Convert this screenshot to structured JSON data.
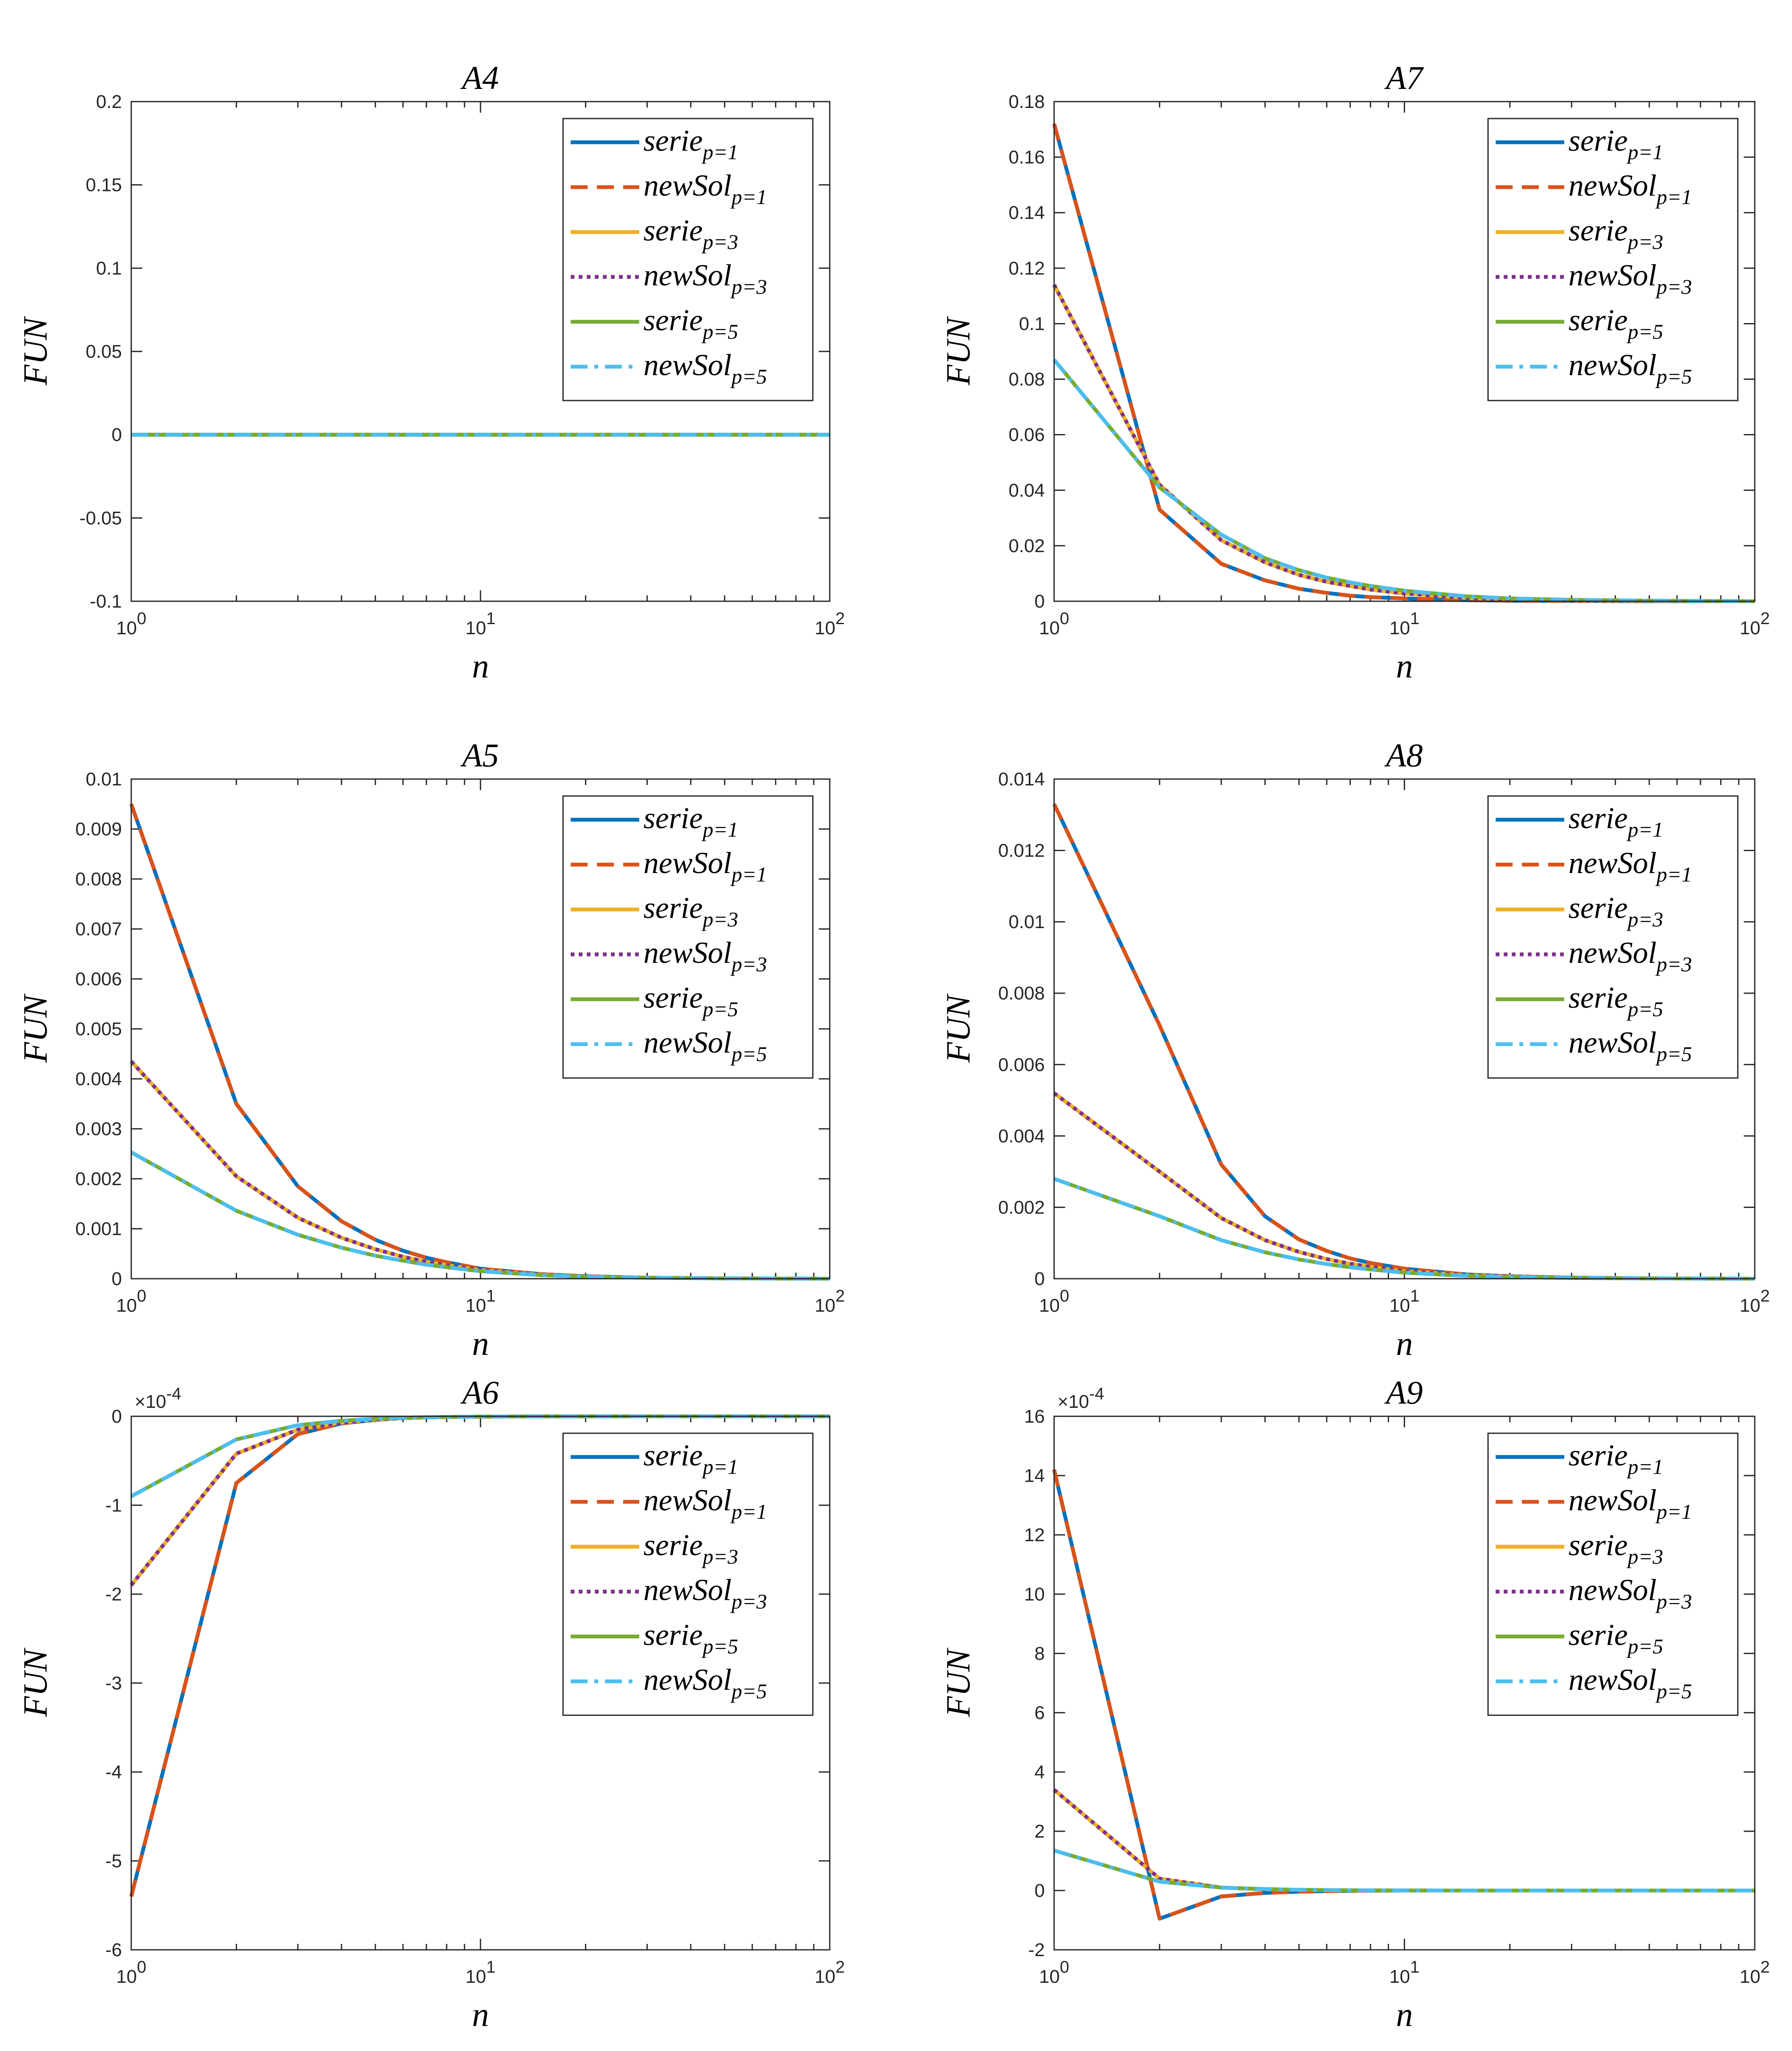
{
  "chart_data": [
    {
      "type": "line",
      "title": "A4",
      "xlabel": "n",
      "ylabel": "FUN",
      "xscale": "log",
      "xlim": [
        1,
        100
      ],
      "ylim": [
        -0.1,
        0.2
      ],
      "yticks": [
        "-0.1",
        "-0.05",
        "0",
        "0.05",
        "0.1",
        "0.15",
        "0.2"
      ],
      "xticks": [
        {
          "base": "10",
          "exp": "0"
        },
        {
          "base": "10",
          "exp": "1"
        },
        {
          "base": "10",
          "exp": "2"
        }
      ],
      "exponent": "",
      "legend_position": "top-right",
      "x": [
        1,
        2,
        3,
        4,
        5,
        6,
        7,
        8,
        10,
        15,
        20,
        30,
        50,
        100
      ],
      "series": [
        {
          "name": "serie",
          "sub": "p=1",
          "values": [
            0,
            0,
            0,
            0,
            0,
            0,
            0,
            0,
            0,
            0,
            0,
            0,
            0,
            0
          ]
        },
        {
          "name": "newSol",
          "sub": "p=1",
          "values": [
            0,
            0,
            0,
            0,
            0,
            0,
            0,
            0,
            0,
            0,
            0,
            0,
            0,
            0
          ]
        },
        {
          "name": "serie",
          "sub": "p=3",
          "values": [
            0,
            0,
            0,
            0,
            0,
            0,
            0,
            0,
            0,
            0,
            0,
            0,
            0,
            0
          ]
        },
        {
          "name": "newSol",
          "sub": "p=3",
          "values": [
            0,
            0,
            0,
            0,
            0,
            0,
            0,
            0,
            0,
            0,
            0,
            0,
            0,
            0
          ]
        },
        {
          "name": "serie",
          "sub": "p=5",
          "values": [
            0,
            0,
            0,
            0,
            0,
            0,
            0,
            0,
            0,
            0,
            0,
            0,
            0,
            0
          ]
        },
        {
          "name": "newSol",
          "sub": "p=5",
          "values": [
            0,
            0,
            0,
            0,
            0,
            0,
            0,
            0,
            0,
            0,
            0,
            0,
            0,
            0
          ]
        }
      ]
    },
    {
      "type": "line",
      "title": "A7",
      "xlabel": "n",
      "ylabel": "FUN",
      "xscale": "log",
      "xlim": [
        1,
        100
      ],
      "ylim": [
        0,
        0.18
      ],
      "yticks": [
        "0",
        "0.02",
        "0.04",
        "0.06",
        "0.08",
        "0.1",
        "0.12",
        "0.14",
        "0.16",
        "0.18"
      ],
      "xticks": [
        {
          "base": "10",
          "exp": "0"
        },
        {
          "base": "10",
          "exp": "1"
        },
        {
          "base": "10",
          "exp": "2"
        }
      ],
      "exponent": "",
      "legend_position": "top-right",
      "x": [
        1,
        2,
        3,
        4,
        5,
        6,
        7,
        8,
        10,
        15,
        20,
        30,
        50,
        100
      ],
      "series": [
        {
          "name": "serie",
          "sub": "p=1",
          "values": [
            0.172,
            0.033,
            0.0135,
            0.0075,
            0.0045,
            0.003,
            0.002,
            0.0015,
            0.001,
            0.0004,
            0.0002,
            0.0001,
            0,
            0
          ]
        },
        {
          "name": "newSol",
          "sub": "p=1",
          "values": [
            0.172,
            0.033,
            0.0135,
            0.0075,
            0.0045,
            0.003,
            0.002,
            0.0015,
            0.001,
            0.0004,
            0.0002,
            0.0001,
            0,
            0
          ]
        },
        {
          "name": "serie",
          "sub": "p=3",
          "values": [
            0.114,
            0.042,
            0.022,
            0.014,
            0.0095,
            0.007,
            0.0055,
            0.0042,
            0.0028,
            0.0012,
            0.0007,
            0.0003,
            0.0001,
            0
          ]
        },
        {
          "name": "newSol",
          "sub": "p=3",
          "values": [
            0.114,
            0.042,
            0.022,
            0.014,
            0.0095,
            0.007,
            0.0055,
            0.0042,
            0.0028,
            0.0012,
            0.0007,
            0.0003,
            0.0001,
            0
          ]
        },
        {
          "name": "serie",
          "sub": "p=5",
          "values": [
            0.087,
            0.041,
            0.024,
            0.0155,
            0.0112,
            0.0085,
            0.0068,
            0.0055,
            0.0038,
            0.0018,
            0.001,
            0.0005,
            0.0002,
            0
          ]
        },
        {
          "name": "newSol",
          "sub": "p=5",
          "values": [
            0.087,
            0.041,
            0.024,
            0.0155,
            0.0112,
            0.0085,
            0.0068,
            0.0055,
            0.0038,
            0.0018,
            0.001,
            0.0005,
            0.0002,
            0
          ]
        }
      ]
    },
    {
      "type": "line",
      "title": "A5",
      "xlabel": "n",
      "ylabel": "FUN",
      "xscale": "log",
      "xlim": [
        1,
        100
      ],
      "ylim": [
        0,
        0.01
      ],
      "yticks": [
        "0",
        "0.001",
        "0.002",
        "0.003",
        "0.004",
        "0.005",
        "0.006",
        "0.007",
        "0.008",
        "0.009",
        "0.01"
      ],
      "xticks": [
        {
          "base": "10",
          "exp": "0"
        },
        {
          "base": "10",
          "exp": "1"
        },
        {
          "base": "10",
          "exp": "2"
        }
      ],
      "exponent": "",
      "legend_position": "top-right",
      "x": [
        1,
        2,
        3,
        4,
        5,
        6,
        7,
        8,
        10,
        15,
        20,
        30,
        50,
        100
      ],
      "series": [
        {
          "name": "serie",
          "sub": "p=1",
          "values": [
            0.0095,
            0.0035,
            0.00185,
            0.00115,
            0.00078,
            0.00056,
            0.00042,
            0.00033,
            0.0002,
            9e-05,
            5e-05,
            2e-05,
            7e-06,
            0
          ]
        },
        {
          "name": "newSol",
          "sub": "p=1",
          "values": [
            0.0095,
            0.0035,
            0.00185,
            0.00115,
            0.00078,
            0.00056,
            0.00042,
            0.00033,
            0.0002,
            9e-05,
            5e-05,
            2e-05,
            7e-06,
            0
          ]
        },
        {
          "name": "serie",
          "sub": "p=3",
          "values": [
            0.00435,
            0.00205,
            0.00122,
            0.00082,
            0.00059,
            0.00044,
            0.00034,
            0.00027,
            0.00017,
            8e-05,
            4e-05,
            2e-05,
            6e-06,
            0
          ]
        },
        {
          "name": "newSol",
          "sub": "p=3",
          "values": [
            0.00435,
            0.00205,
            0.00122,
            0.00082,
            0.00059,
            0.00044,
            0.00034,
            0.00027,
            0.00017,
            8e-05,
            4e-05,
            2e-05,
            6e-06,
            0
          ]
        },
        {
          "name": "serie",
          "sub": "p=5",
          "values": [
            0.00253,
            0.00136,
            0.00088,
            0.00062,
            0.00046,
            0.00036,
            0.00028,
            0.00023,
            0.00015,
            7e-05,
            4e-05,
            2e-05,
            5e-06,
            0
          ]
        },
        {
          "name": "newSol",
          "sub": "p=5",
          "values": [
            0.00253,
            0.00136,
            0.00088,
            0.00062,
            0.00046,
            0.00036,
            0.00028,
            0.00023,
            0.00015,
            7e-05,
            4e-05,
            2e-05,
            5e-06,
            0
          ]
        }
      ]
    },
    {
      "type": "line",
      "title": "A8",
      "xlabel": "n",
      "ylabel": "FUN",
      "xscale": "log",
      "xlim": [
        1,
        100
      ],
      "ylim": [
        0,
        0.014
      ],
      "yticks": [
        "0",
        "0.002",
        "0.004",
        "0.006",
        "0.008",
        "0.01",
        "0.012",
        "0.014"
      ],
      "xticks": [
        {
          "base": "10",
          "exp": "0"
        },
        {
          "base": "10",
          "exp": "1"
        },
        {
          "base": "10",
          "exp": "2"
        }
      ],
      "exponent": "",
      "legend_position": "top-right",
      "x": [
        1,
        2,
        3,
        4,
        5,
        6,
        7,
        8,
        10,
        15,
        20,
        30,
        50,
        100
      ],
      "series": [
        {
          "name": "serie",
          "sub": "p=1",
          "values": [
            0.0133,
            0.0071,
            0.0032,
            0.00175,
            0.0011,
            0.00078,
            0.00057,
            0.00044,
            0.00028,
            0.00012,
            7e-05,
            3e-05,
            1e-05,
            0
          ]
        },
        {
          "name": "newSol",
          "sub": "p=1",
          "values": [
            0.0133,
            0.0071,
            0.0032,
            0.00175,
            0.0011,
            0.00078,
            0.00057,
            0.00044,
            0.00028,
            0.00012,
            7e-05,
            3e-05,
            1e-05,
            0
          ]
        },
        {
          "name": "serie",
          "sub": "p=3",
          "values": [
            0.0052,
            0.003,
            0.0017,
            0.00108,
            0.00075,
            0.00055,
            0.00042,
            0.00033,
            0.00021,
            0.0001,
            6e-05,
            2e-05,
            8e-06,
            0
          ]
        },
        {
          "name": "newSol",
          "sub": "p=3",
          "values": [
            0.0052,
            0.003,
            0.0017,
            0.00108,
            0.00075,
            0.00055,
            0.00042,
            0.00033,
            0.00021,
            0.0001,
            6e-05,
            2e-05,
            8e-06,
            0
          ]
        },
        {
          "name": "serie",
          "sub": "p=5",
          "values": [
            0.0028,
            0.00175,
            0.00108,
            0.00074,
            0.00054,
            0.00041,
            0.00032,
            0.00026,
            0.00017,
            8e-05,
            5e-05,
            2e-05,
            7e-06,
            0
          ]
        },
        {
          "name": "newSol",
          "sub": "p=5",
          "values": [
            0.0028,
            0.00175,
            0.00108,
            0.00074,
            0.00054,
            0.00041,
            0.00032,
            0.00026,
            0.00017,
            8e-05,
            5e-05,
            2e-05,
            7e-06,
            0
          ]
        }
      ]
    },
    {
      "type": "line",
      "title": "A6",
      "xlabel": "n",
      "ylabel": "FUN",
      "xscale": "log",
      "xlim": [
        1,
        100
      ],
      "ylim": [
        -6,
        0
      ],
      "yticks": [
        "-6",
        "-5",
        "-4",
        "-3",
        "-2",
        "-1",
        "0"
      ],
      "xticks": [
        {
          "base": "10",
          "exp": "0"
        },
        {
          "base": "10",
          "exp": "1"
        },
        {
          "base": "10",
          "exp": "2"
        }
      ],
      "exponent": "×10-4",
      "legend_position": "top-right",
      "x": [
        1,
        2,
        3,
        4,
        5,
        6,
        7,
        8,
        10,
        15,
        20,
        30,
        50,
        100
      ],
      "series": [
        {
          "name": "serie",
          "sub": "p=1",
          "values": [
            -5.4,
            -0.75,
            -0.2,
            -0.08,
            -0.04,
            -0.02,
            -0.012,
            -0.008,
            -0.004,
            -0.001,
            -0.0005,
            0,
            0,
            0
          ]
        },
        {
          "name": "newSol",
          "sub": "p=1",
          "values": [
            -5.4,
            -0.75,
            -0.2,
            -0.08,
            -0.04,
            -0.02,
            -0.012,
            -0.008,
            -0.004,
            -0.001,
            -0.0005,
            0,
            0,
            0
          ]
        },
        {
          "name": "serie",
          "sub": "p=3",
          "values": [
            -1.9,
            -0.42,
            -0.15,
            -0.07,
            -0.035,
            -0.02,
            -0.012,
            -0.008,
            -0.004,
            -0.001,
            -0.0005,
            0,
            0,
            0
          ]
        },
        {
          "name": "newSol",
          "sub": "p=3",
          "values": [
            -1.9,
            -0.42,
            -0.15,
            -0.07,
            -0.035,
            -0.02,
            -0.012,
            -0.008,
            -0.004,
            -0.001,
            -0.0005,
            0,
            0,
            0
          ]
        },
        {
          "name": "serie",
          "sub": "p=5",
          "values": [
            -0.9,
            -0.26,
            -0.1,
            -0.05,
            -0.027,
            -0.016,
            -0.01,
            -0.007,
            -0.003,
            -0.001,
            -0.0005,
            0,
            0,
            0
          ]
        },
        {
          "name": "newSol",
          "sub": "p=5",
          "values": [
            -0.9,
            -0.26,
            -0.1,
            -0.05,
            -0.027,
            -0.016,
            -0.01,
            -0.007,
            -0.003,
            -0.001,
            -0.0005,
            0,
            0,
            0
          ]
        }
      ]
    },
    {
      "type": "line",
      "title": "A9",
      "xlabel": "n",
      "ylabel": "FUN",
      "xscale": "log",
      "xlim": [
        1,
        100
      ],
      "ylim": [
        -2,
        16
      ],
      "yticks": [
        "-2",
        "0",
        "2",
        "4",
        "6",
        "8",
        "10",
        "12",
        "14",
        "16"
      ],
      "xticks": [
        {
          "base": "10",
          "exp": "0"
        },
        {
          "base": "10",
          "exp": "1"
        },
        {
          "base": "10",
          "exp": "2"
        }
      ],
      "exponent": "×10-4",
      "legend_position": "top-right",
      "x": [
        1,
        2,
        3,
        4,
        5,
        6,
        7,
        8,
        10,
        15,
        20,
        30,
        50,
        100
      ],
      "series": [
        {
          "name": "serie",
          "sub": "p=1",
          "values": [
            14.2,
            -0.95,
            -0.2,
            -0.08,
            -0.04,
            -0.02,
            -0.01,
            -0.005,
            0,
            0,
            0,
            0,
            0,
            0
          ]
        },
        {
          "name": "newSol",
          "sub": "p=1",
          "values": [
            14.2,
            -0.95,
            -0.2,
            -0.08,
            -0.04,
            -0.02,
            -0.01,
            -0.005,
            0,
            0,
            0,
            0,
            0,
            0
          ]
        },
        {
          "name": "serie",
          "sub": "p=3",
          "values": [
            3.4,
            0.4,
            0.1,
            0.04,
            0.02,
            0.01,
            0.005,
            0.003,
            0.001,
            0,
            0,
            0,
            0,
            0
          ]
        },
        {
          "name": "newSol",
          "sub": "p=3",
          "values": [
            3.4,
            0.4,
            0.1,
            0.04,
            0.02,
            0.01,
            0.005,
            0.003,
            0.001,
            0,
            0,
            0,
            0,
            0
          ]
        },
        {
          "name": "serie",
          "sub": "p=5",
          "values": [
            1.35,
            0.3,
            0.1,
            0.05,
            0.025,
            0.015,
            0.008,
            0.005,
            0.002,
            0,
            0,
            0,
            0,
            0
          ]
        },
        {
          "name": "newSol",
          "sub": "p=5",
          "values": [
            1.35,
            0.3,
            0.1,
            0.05,
            0.025,
            0.015,
            0.008,
            0.005,
            0.002,
            0,
            0,
            0,
            0,
            0
          ]
        }
      ]
    }
  ],
  "series_style": [
    {
      "color": "#0072BD",
      "dash": "solid"
    },
    {
      "color": "#D95319",
      "dash": "dashed"
    },
    {
      "color": "#EDB120",
      "dash": "solid"
    },
    {
      "color": "#7E2F8E",
      "dash": "dotted"
    },
    {
      "color": "#77AC30",
      "dash": "solid"
    },
    {
      "color": "#4DBEEE",
      "dash": "dashdot"
    }
  ]
}
